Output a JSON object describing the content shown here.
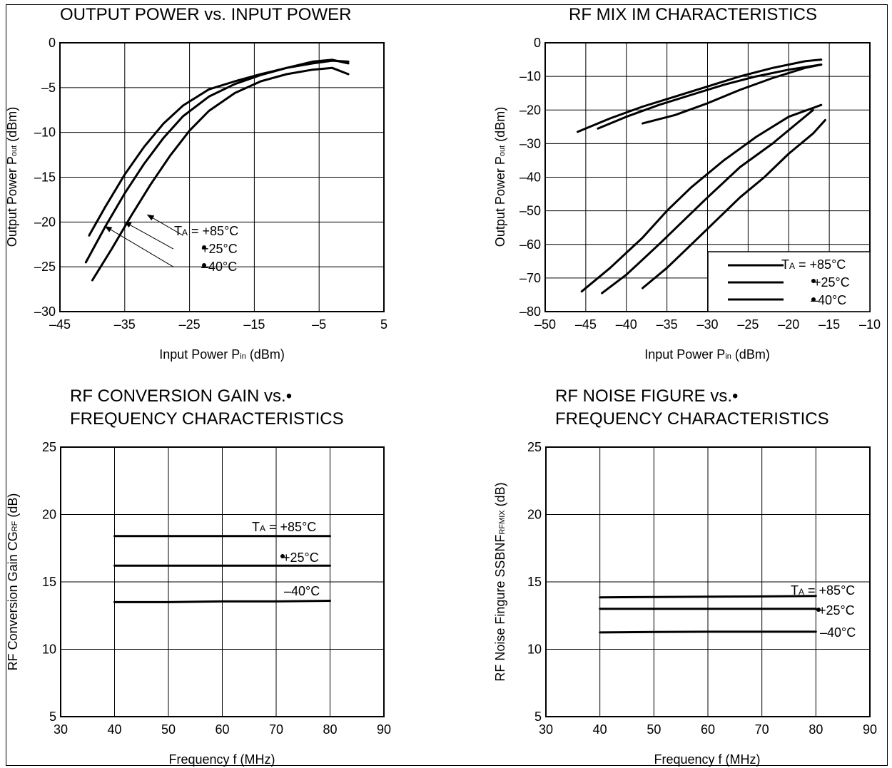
{
  "chart_data": [
    {
      "type": "line",
      "title": "OUTPUT POWER vs. INPUT POWER",
      "xlabel": "Input Power  P",
      "xlabel_sub": "in",
      "xlabel_suffix": " (dBm)",
      "ylabel": "Output Power  P",
      "ylabel_sub": "out",
      "ylabel_suffix": " (dBm)",
      "xlim": [
        -45,
        5
      ],
      "ylim": [
        -30,
        0
      ],
      "xticks": [
        -45,
        -35,
        -25,
        -15,
        -5,
        5
      ],
      "xtick_labels": [
        "–45",
        "–35",
        "–25",
        "–15",
        "–5",
        "5"
      ],
      "xgrid": [
        -45,
        -35,
        -25,
        -15,
        -5,
        5
      ],
      "yticks": [
        0,
        -5,
        -10,
        -15,
        -20,
        -25,
        -30
      ],
      "ytick_labels": [
        "0",
        "–5",
        "–10",
        "–15",
        "–20",
        "–25",
        "–30"
      ],
      "grid": true,
      "legend": [
        "T",
        "A",
        " = +85°C",
        "+25°C",
        "–40°C"
      ],
      "series": [
        {
          "x": [
            -40.5,
            -38,
            -35,
            -32,
            -29,
            -26,
            -22,
            -18,
            -14,
            -10,
            -6,
            -3,
            -0.5
          ],
          "y": [
            -21.5,
            -18.3,
            -14.7,
            -11.6,
            -9,
            -7,
            -5.2,
            -4.3,
            -3.5,
            -2.8,
            -2.3,
            -2,
            -2.1
          ]
        },
        {
          "x": [
            -41,
            -38,
            -35,
            -32,
            -29,
            -26,
            -22,
            -18,
            -14,
            -10,
            -6,
            -3,
            -0.5
          ],
          "y": [
            -24.5,
            -20.5,
            -16.8,
            -13.5,
            -10.6,
            -8.2,
            -6,
            -4.6,
            -3.6,
            -2.8,
            -2.1,
            -1.9,
            -2.3
          ]
        },
        {
          "x": [
            -40,
            -37,
            -34,
            -31,
            -28,
            -25,
            -22,
            -18,
            -14,
            -10,
            -6,
            -3,
            -0.5
          ],
          "y": [
            -26.5,
            -23,
            -19.3,
            -15.8,
            -12.6,
            -9.8,
            -7.6,
            -5.6,
            -4.3,
            -3.5,
            -3,
            -2.8,
            -3.5
          ]
        }
      ],
      "pointers": [
        {
          "from": [
            -26,
            -21.5
          ],
          "to": [
            -31.5,
            -19.2
          ]
        },
        {
          "from": [
            -27.5,
            -23
          ],
          "to": [
            -35,
            -20
          ]
        },
        {
          "from": [
            -27.5,
            -25
          ],
          "to": [
            -38,
            -20.5
          ]
        }
      ]
    },
    {
      "type": "line",
      "title": "RF MIX IM CHARACTERISTICS",
      "xlabel": "Input Power  P",
      "xlabel_sub": "in",
      "xlabel_suffix": " (dBm)",
      "ylabel": "Output Power  P",
      "ylabel_sub": "out",
      "ylabel_suffix": " (dBm)",
      "xlim": [
        -50,
        -10
      ],
      "ylim": [
        -80,
        0
      ],
      "xticks": [
        -50,
        -45,
        -40,
        -35,
        -30,
        -25,
        -20,
        -15,
        -10
      ],
      "xtick_labels": [
        "–50",
        "–45",
        "–40",
        "–35",
        "–30",
        "–25",
        "–20",
        "–15",
        "–10"
      ],
      "xgrid": [
        -50,
        -45,
        -40,
        -35,
        -30,
        -25,
        -20,
        -15,
        -10
      ],
      "yticks": [
        0,
        -10,
        -20,
        -30,
        -40,
        -50,
        -60,
        -70,
        -80
      ],
      "ytick_labels": [
        "0",
        "–10",
        "–20",
        "–30",
        "–40",
        "–50",
        "–60",
        "–70",
        "–80"
      ],
      "grid": true,
      "legend": [
        "T",
        "A",
        " = +85°C",
        "+25°C",
        "–40°C"
      ],
      "series": [
        {
          "x": [
            -46,
            -42,
            -38,
            -34,
            -30,
            -26,
            -22,
            -18,
            -16
          ],
          "y": [
            -26.5,
            -22.5,
            -19,
            -16,
            -13,
            -10,
            -7.5,
            -5.5,
            -5
          ]
        },
        {
          "x": [
            -43.5,
            -40,
            -36,
            -32,
            -28,
            -24,
            -20,
            -16
          ],
          "y": [
            -25.5,
            -22,
            -18.5,
            -15.5,
            -12.5,
            -10,
            -8,
            -6.5
          ]
        },
        {
          "x": [
            -38,
            -34,
            -30,
            -26,
            -22,
            -18,
            -16
          ],
          "y": [
            -24,
            -21.5,
            -18,
            -14,
            -10.5,
            -7.5,
            -6.5
          ]
        },
        {
          "x": [
            -45.5,
            -42,
            -38,
            -35,
            -32,
            -28,
            -24,
            -20,
            -16
          ],
          "y": [
            -74,
            -67,
            -58,
            -50,
            -43,
            -35,
            -28,
            -22,
            -18.5
          ]
        },
        {
          "x": [
            -43,
            -40,
            -36,
            -33,
            -30,
            -26,
            -22,
            -19,
            -17
          ],
          "y": [
            -74.5,
            -69,
            -60,
            -53,
            -46,
            -37,
            -30,
            -24,
            -20
          ]
        },
        {
          "x": [
            -38,
            -35,
            -32,
            -29,
            -26,
            -23,
            -20,
            -17,
            -15.5
          ],
          "y": [
            -73,
            -67,
            -60,
            -53,
            -46,
            -40,
            -33,
            -27,
            -23
          ]
        }
      ]
    },
    {
      "type": "line",
      "title": "RF CONVERSION GAIN vs.•\nFREQUENCY CHARACTERISTICS",
      "xlabel": "Frequency  f (MHz)",
      "ylabel": "RF Conversion Gain  CG",
      "ylabel_sub": "RF",
      "ylabel_suffix": " (dB)",
      "xlim": [
        30,
        90
      ],
      "ylim": [
        5,
        25
      ],
      "xticks": [
        30,
        40,
        50,
        60,
        70,
        80,
        90
      ],
      "xtick_labels": [
        "30",
        "40",
        "50",
        "60",
        "70",
        "80",
        "90"
      ],
      "xgrid": [
        40,
        50,
        60,
        70,
        80
      ],
      "yticks": [
        25,
        20,
        15,
        10,
        5
      ],
      "ytick_labels": [
        "25",
        "20",
        "15",
        "10",
        "5"
      ],
      "ygrid": [
        20,
        15,
        10
      ],
      "grid": true,
      "legend": [
        "T",
        "A",
        " = +85°C",
        "+25°C",
        "–40°C"
      ],
      "series": [
        {
          "x": [
            40,
            50,
            60,
            70,
            80
          ],
          "y": [
            18.4,
            18.4,
            18.4,
            18.4,
            18.4
          ]
        },
        {
          "x": [
            40,
            50,
            60,
            70,
            80
          ],
          "y": [
            16.2,
            16.2,
            16.2,
            16.2,
            16.2
          ]
        },
        {
          "x": [
            40,
            50,
            60,
            70,
            80
          ],
          "y": [
            13.5,
            13.5,
            13.55,
            13.55,
            13.6
          ]
        }
      ]
    },
    {
      "type": "line",
      "title": "RF NOISE FIGURE vs.•\nFREQUENCY CHARACTERISTICS",
      "xlabel": "Frequency  f (MHz)",
      "ylabel": "RF Noise Fingure  SSBNF",
      "ylabel_sub": "RFMIX",
      "ylabel_suffix": " (dB)",
      "xlim": [
        30,
        90
      ],
      "ylim": [
        5,
        25
      ],
      "xticks": [
        30,
        40,
        50,
        60,
        70,
        80,
        90
      ],
      "xtick_labels": [
        "30",
        "40",
        "50",
        "60",
        "70",
        "80",
        "90"
      ],
      "xgrid": [
        40,
        50,
        60,
        70,
        80
      ],
      "yticks": [
        25,
        20,
        15,
        10,
        5
      ],
      "ytick_labels": [
        "25",
        "20",
        "15",
        "10",
        "5"
      ],
      "ygrid": [
        20,
        15,
        10
      ],
      "grid": true,
      "legend": [
        "T",
        "A",
        " = +85°C",
        "+25°C",
        "–40°C"
      ],
      "series": [
        {
          "x": [
            40,
            50,
            60,
            70,
            80
          ],
          "y": [
            13.85,
            13.88,
            13.9,
            13.92,
            13.95
          ]
        },
        {
          "x": [
            40,
            50,
            60,
            70,
            80
          ],
          "y": [
            13,
            13,
            13,
            13,
            13
          ]
        },
        {
          "x": [
            40,
            50,
            60,
            70,
            80
          ],
          "y": [
            11.25,
            11.28,
            11.3,
            11.3,
            11.3
          ]
        }
      ]
    }
  ]
}
